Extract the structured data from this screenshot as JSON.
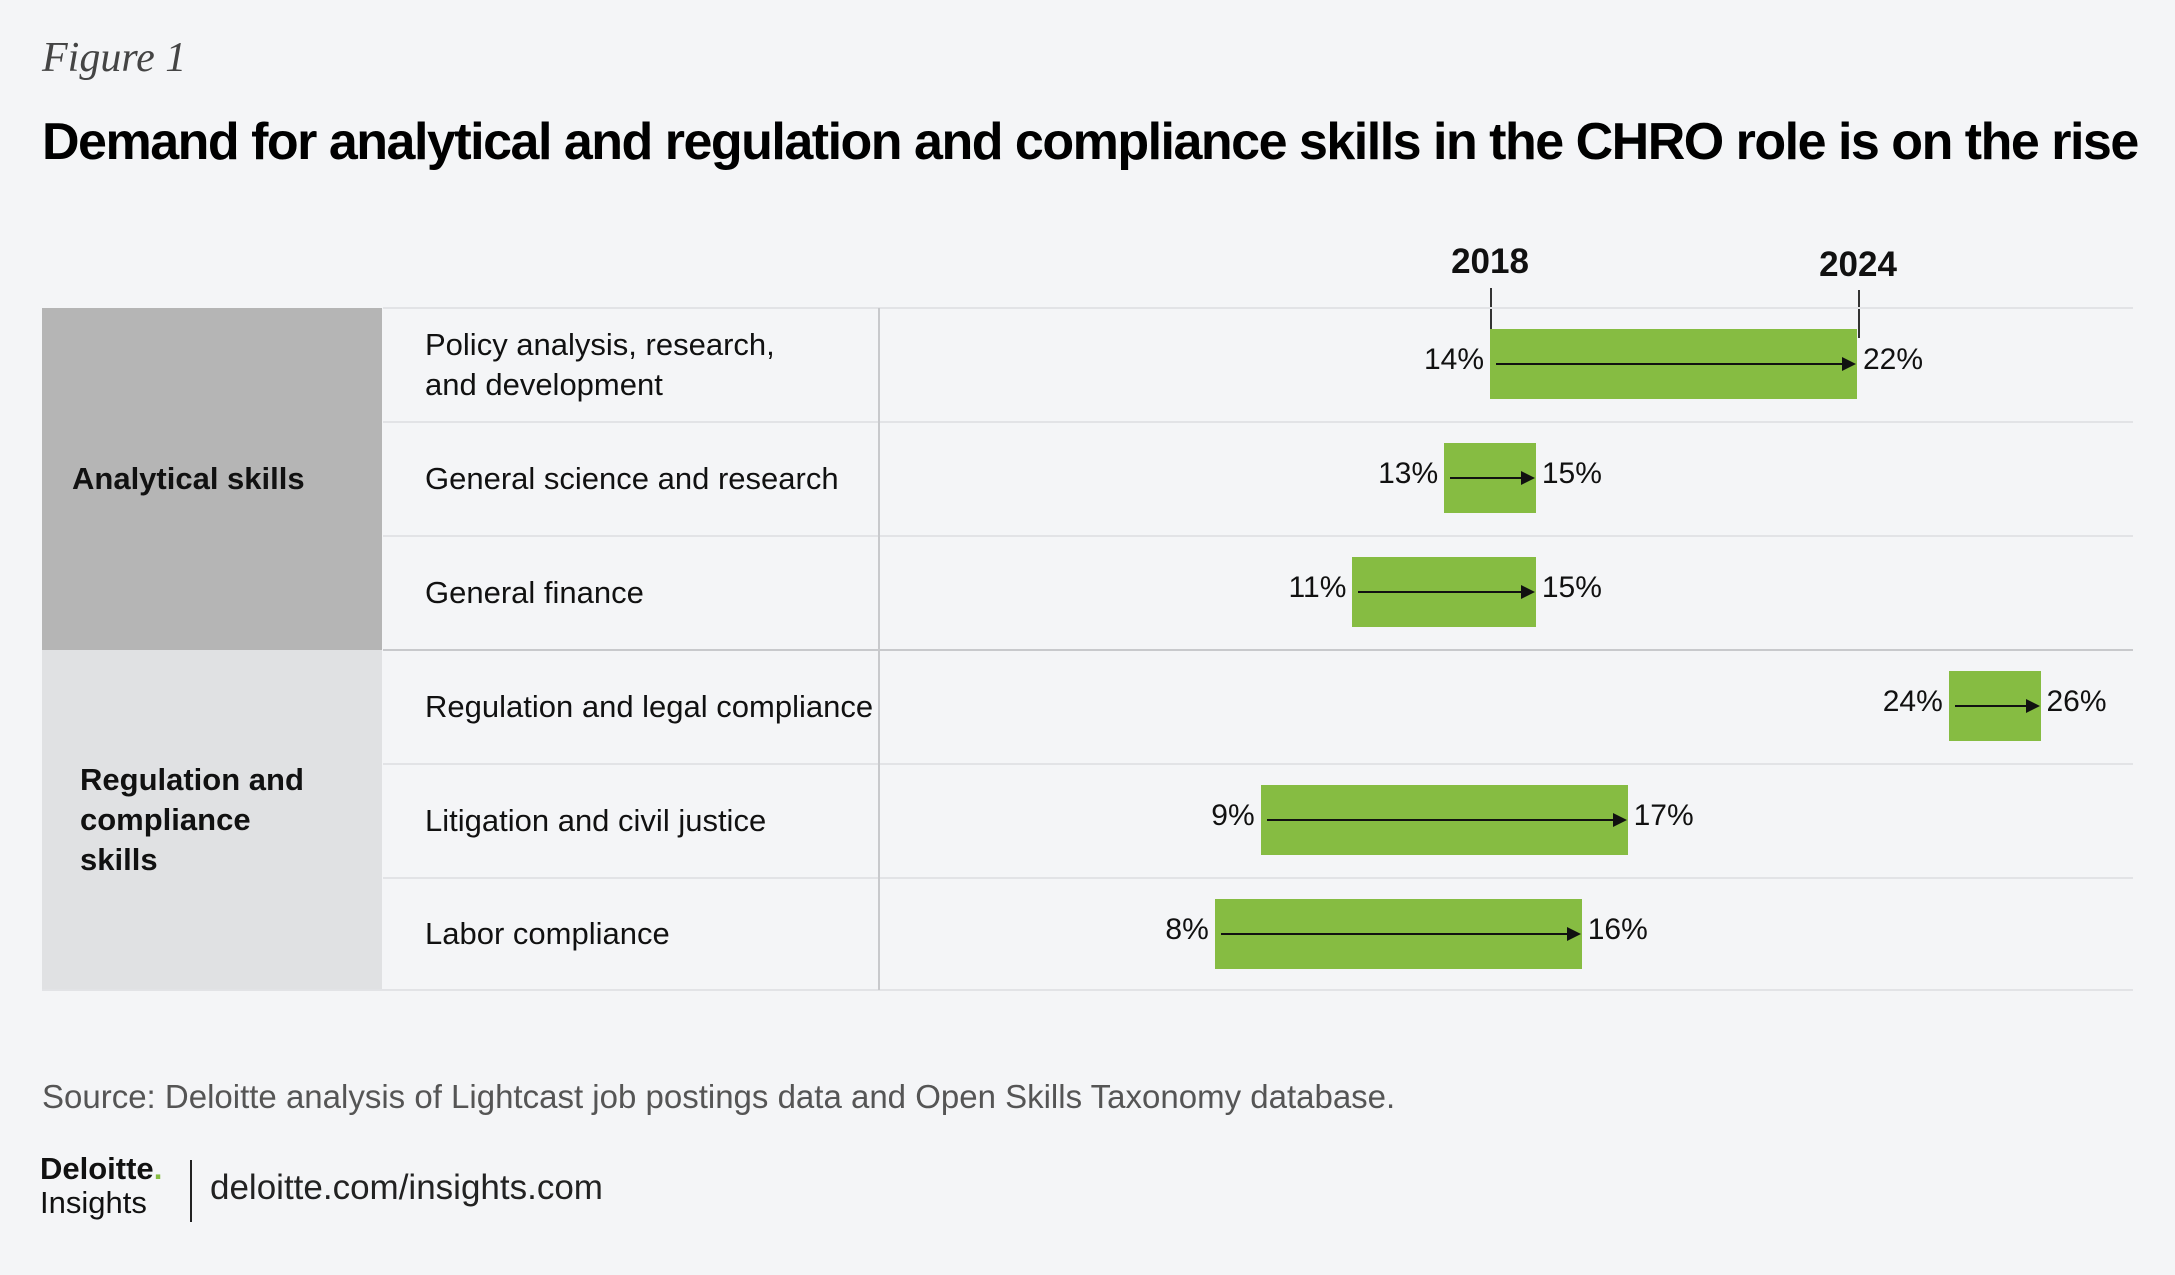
{
  "figure_label": "Figure 1",
  "title": "Demand for analytical and regulation and compliance skills in the CHRO role is on the rise",
  "source": "Source: Deloitte analysis of Lightcast job postings data and Open Skills Taxonomy database.",
  "footer": {
    "logo_line1": "Deloitte",
    "logo_dot": ".",
    "logo_line2": "Insights",
    "url": "deloitte.com/insights.com"
  },
  "colors": {
    "bar": "#86bc42",
    "group_dark": "#b5b5b5",
    "group_light": "#e0e1e3"
  },
  "chart_data": {
    "type": "bar",
    "subtype": "range-arrow",
    "series": [
      {
        "name": "2018"
      },
      {
        "name": "2024"
      }
    ],
    "groups": [
      {
        "label": "Analytical skills",
        "items": [
          {
            "label": "Policy analysis, research, and development",
            "from": 14,
            "to": 22
          },
          {
            "label": "General science and research",
            "from": 13,
            "to": 15
          },
          {
            "label": "General finance",
            "from": 11,
            "to": 15
          }
        ]
      },
      {
        "label": "Regulation and compliance skills",
        "items": [
          {
            "label": "Regulation and legal compliance",
            "from": 24,
            "to": 26
          },
          {
            "label": "Litigation and civil justice",
            "from": 9,
            "to": 17
          },
          {
            "label": "Labor compliance",
            "from": 8,
            "to": 16
          }
        ]
      }
    ],
    "unit": "%",
    "xlim": [
      0,
      30
    ]
  }
}
